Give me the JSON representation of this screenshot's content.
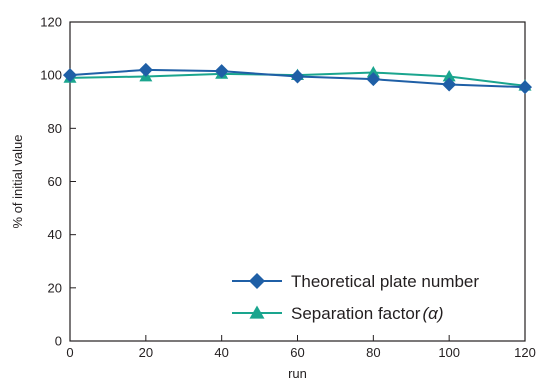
{
  "chart_data": {
    "type": "line",
    "title": "",
    "xlabel": "run",
    "ylabel": "% of initial value",
    "x": [
      0,
      20,
      40,
      60,
      80,
      100,
      120
    ],
    "xticks": [
      "0",
      "20",
      "40",
      "60",
      "80",
      "100",
      "120"
    ],
    "yticks": [
      "0",
      "20",
      "40",
      "60",
      "80",
      "100",
      "120"
    ],
    "xlim": [
      0,
      120
    ],
    "ylim": [
      0,
      120
    ],
    "grid": false,
    "legend_position": "bottom-right",
    "series": [
      {
        "name": "Theoretical plate number",
        "marker": "diamond",
        "color": "#1f5fa6",
        "values": [
          100,
          102,
          101.5,
          99.5,
          98.5,
          96.5,
          95.5
        ]
      },
      {
        "name": "Separation factor",
        "name_suffix": "(α)",
        "marker": "triangle",
        "color": "#1aa58e",
        "values": [
          99,
          99.5,
          100.5,
          100,
          101,
          99.5,
          96
        ]
      }
    ]
  }
}
